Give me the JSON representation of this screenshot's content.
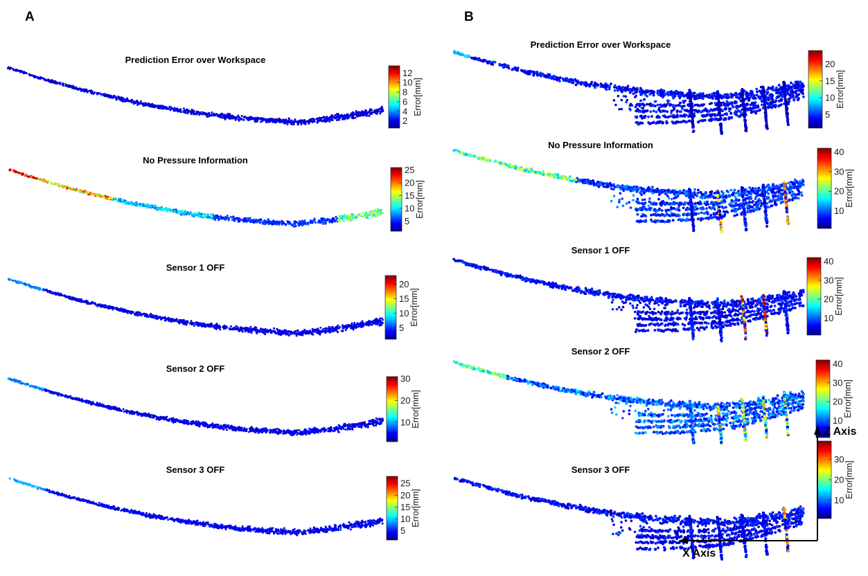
{
  "panel_labels": [
    "A",
    "B"
  ],
  "axes_labels": {
    "z": "Z Axis",
    "x": "X Axis"
  },
  "colormap": [
    "#00007f",
    "#0000ff",
    "#007fff",
    "#00ffff",
    "#7fff7f",
    "#ffff00",
    "#ff7f00",
    "#ff0000",
    "#7f0000"
  ],
  "chart_data": [
    {
      "type": "scatter",
      "panel": "A",
      "title": "Prediction Error over Workspace",
      "colorbar_label": "Error[mm]",
      "clim": [
        0.5,
        13.5
      ],
      "ticks": [
        2,
        4,
        6,
        8,
        10,
        12
      ]
    },
    {
      "type": "scatter",
      "panel": "A",
      "title": "No Pressure Information",
      "colorbar_label": "Error[mm]",
      "clim": [
        1,
        26
      ],
      "ticks": [
        5,
        10,
        15,
        20,
        25
      ]
    },
    {
      "type": "scatter",
      "panel": "A",
      "title": "Sensor 1 OFF",
      "colorbar_label": "Error[mm]",
      "clim": [
        1,
        23
      ],
      "ticks": [
        5,
        10,
        15,
        20
      ]
    },
    {
      "type": "scatter",
      "panel": "A",
      "title": "Sensor 2 OFF",
      "colorbar_label": "Error[mm]",
      "clim": [
        1,
        31
      ],
      "ticks": [
        10,
        20,
        30
      ]
    },
    {
      "type": "scatter",
      "panel": "A",
      "title": "Sensor 3 OFF",
      "colorbar_label": "Error[mm]",
      "clim": [
        1,
        28
      ],
      "ticks": [
        5,
        10,
        15,
        20,
        25
      ]
    },
    {
      "type": "scatter",
      "panel": "B",
      "title": "Prediction Error over Workspace",
      "colorbar_label": "Error[mm]",
      "clim": [
        1,
        24
      ],
      "ticks": [
        5,
        10,
        15,
        20
      ]
    },
    {
      "type": "scatter",
      "panel": "B",
      "title": "No Pressure Information",
      "colorbar_label": "Error[mm]",
      "clim": [
        1,
        42
      ],
      "ticks": [
        10,
        20,
        30,
        40
      ]
    },
    {
      "type": "scatter",
      "panel": "B",
      "title": "Sensor 1 OFF",
      "colorbar_label": "Error[mm]",
      "clim": [
        1,
        42
      ],
      "ticks": [
        10,
        20,
        30,
        40
      ]
    },
    {
      "type": "scatter",
      "panel": "B",
      "title": "Sensor 2 OFF",
      "colorbar_label": "Error[mm]",
      "clim": [
        1,
        42
      ],
      "ticks": [
        10,
        20,
        30,
        40
      ]
    },
    {
      "type": "scatter",
      "panel": "B",
      "title": "Sensor 3 OFF",
      "colorbar_label": "Error[mm]",
      "clim": [
        1,
        39
      ],
      "ticks": [
        10,
        20,
        30
      ]
    }
  ]
}
